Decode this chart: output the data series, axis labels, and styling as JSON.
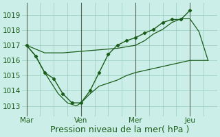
{
  "bg_color": "#cceee8",
  "grid_color": "#99ccbb",
  "line_color": "#1a5c1a",
  "marker_color": "#1a5c1a",
  "xlabel": "Pression niveau de la mer( hPa )",
  "xlabel_fontsize": 9,
  "tick_fontsize": 7.5,
  "yticks": [
    1013,
    1014,
    1015,
    1016,
    1017,
    1018,
    1019
  ],
  "ylim": [
    1012.3,
    1019.8
  ],
  "xtick_labels": [
    "Mar",
    "Ven",
    "Mer",
    "Jeu"
  ],
  "xtick_positions": [
    0,
    24,
    48,
    72
  ],
  "xlim": [
    -2,
    84
  ],
  "vline_positions": [
    0,
    24,
    48,
    72
  ],
  "minor_vlines": [
    6,
    12,
    18,
    30,
    36,
    42,
    54,
    60,
    66,
    78
  ],
  "series1_x": [
    0,
    4,
    8,
    12,
    16,
    20,
    24,
    28,
    32,
    36,
    40,
    44,
    48,
    52,
    56,
    60,
    64,
    68,
    72
  ],
  "series1_y": [
    1017.0,
    1016.3,
    1015.2,
    1014.8,
    1013.8,
    1013.2,
    1013.2,
    1014.0,
    1015.2,
    1016.4,
    1017.0,
    1017.3,
    1017.5,
    1017.8,
    1018.05,
    1018.5,
    1018.7,
    1018.7,
    1019.3
  ],
  "series2_x": [
    0,
    8,
    16,
    24,
    32,
    40,
    48,
    52,
    56,
    60,
    64,
    68,
    72,
    76,
    80
  ],
  "series2_y": [
    1017.0,
    1016.5,
    1016.5,
    1016.6,
    1016.7,
    1016.8,
    1017.0,
    1017.3,
    1017.75,
    1018.05,
    1018.5,
    1018.75,
    1018.75,
    1017.9,
    1016.0
  ],
  "series3_x": [
    0,
    4,
    8,
    14,
    18,
    22,
    24,
    28,
    32,
    36,
    40,
    44,
    48,
    72,
    80
  ],
  "series3_y": [
    1017.0,
    1016.3,
    1015.2,
    1013.8,
    1013.2,
    1013.0,
    1013.2,
    1013.8,
    1014.3,
    1014.5,
    1014.7,
    1015.0,
    1015.2,
    1016.0,
    1016.0
  ]
}
